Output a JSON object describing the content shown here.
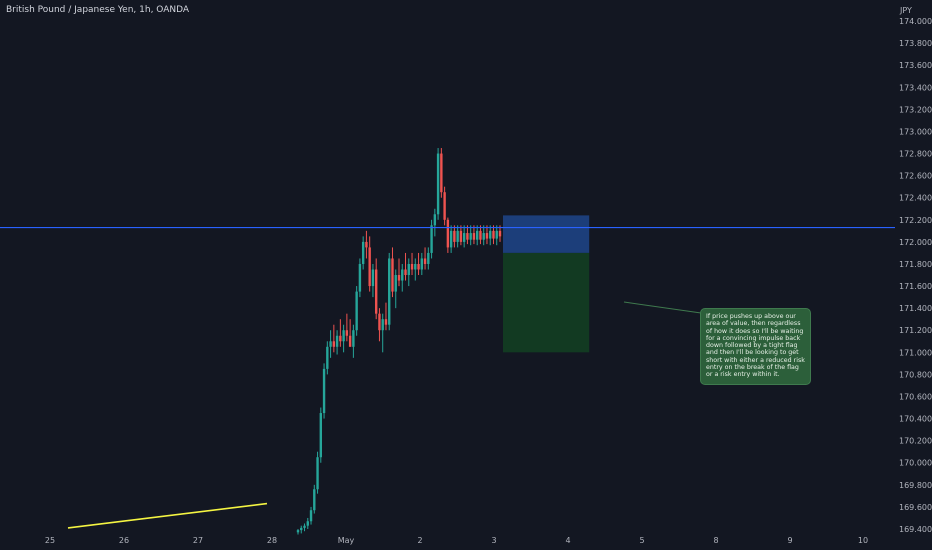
{
  "chart_data": {
    "type": "candlestick",
    "title": "British Pound / Japanese Yen, 1h, OANDA",
    "y_unit": "JPY",
    "ylim": [
      169.4,
      174.1
    ],
    "x_ticks": [
      "25",
      "26",
      "27",
      "28",
      "May",
      "2",
      "3",
      "4",
      "5",
      "8",
      "9",
      "10"
    ],
    "y_ticks": [
      "174.000",
      "173.800",
      "173.600",
      "173.400",
      "173.200",
      "173.000",
      "172.800",
      "172.600",
      "172.400",
      "172.200",
      "172.000",
      "171.800",
      "171.600",
      "171.400",
      "171.200",
      "171.000",
      "170.800",
      "170.600",
      "170.400",
      "170.200",
      "170.000",
      "169.800",
      "169.600",
      "169.400"
    ],
    "horizontal_line": {
      "value": 172.13,
      "color": "#2962ff"
    },
    "trendline": {
      "from": [
        "25",
        169.41
      ],
      "to": [
        "28",
        169.63
      ],
      "color": "#f5f542"
    },
    "position_box": {
      "side": "short",
      "entry": 171.9,
      "stop": 172.24,
      "target": 171.0,
      "from": "3",
      "to": "4.3",
      "risk_color": "#1c3e7a",
      "reward_color": "#123a22"
    },
    "annotation": "If price pushes up above our area of value, then regardless of how it does so I'll be waiting for a convincing impulse back down followed by a tight flag and then I'll be looking to get short with either a reduced risk entry on the break of the flag or a risk entry within it.",
    "colors": {
      "up": "#26a69a",
      "down": "#ef5350",
      "background": "#131722",
      "axis_text": "#b2b5be"
    },
    "candles": [
      {
        "x": "28",
        "o": 169.37,
        "h": 169.4,
        "l": 169.35,
        "c": 169.39
      },
      {
        "x": "28",
        "o": 169.39,
        "h": 169.43,
        "l": 169.36,
        "c": 169.41
      },
      {
        "x": "28",
        "o": 169.41,
        "h": 169.45,
        "l": 169.38,
        "c": 169.43
      },
      {
        "x": "28",
        "o": 169.43,
        "h": 169.5,
        "l": 169.4,
        "c": 169.47
      },
      {
        "x": "28",
        "o": 169.47,
        "h": 169.6,
        "l": 169.44,
        "c": 169.57
      },
      {
        "x": "28",
        "o": 169.57,
        "h": 169.8,
        "l": 169.54,
        "c": 169.76
      },
      {
        "x": "28",
        "o": 169.76,
        "h": 170.1,
        "l": 169.72,
        "c": 170.05
      },
      {
        "x": "28",
        "o": 170.05,
        "h": 170.5,
        "l": 170.0,
        "c": 170.45
      },
      {
        "x": "28",
        "o": 170.45,
        "h": 170.9,
        "l": 170.4,
        "c": 170.85
      },
      {
        "x": "28",
        "o": 170.85,
        "h": 171.1,
        "l": 170.8,
        "c": 171.05
      },
      {
        "x": "28",
        "o": 171.05,
        "h": 171.2,
        "l": 170.95,
        "c": 171.1
      },
      {
        "x": "28",
        "o": 171.1,
        "h": 171.25,
        "l": 171.0,
        "c": 171.05
      },
      {
        "x": "28",
        "o": 171.05,
        "h": 171.2,
        "l": 170.98,
        "c": 171.15
      },
      {
        "x": "28",
        "o": 171.15,
        "h": 171.3,
        "l": 171.05,
        "c": 171.1
      },
      {
        "x": "28",
        "o": 171.1,
        "h": 171.25,
        "l": 171.0,
        "c": 171.2
      },
      {
        "x": "28",
        "o": 171.2,
        "h": 171.35,
        "l": 171.1,
        "c": 171.15
      },
      {
        "x": "28",
        "o": 171.15,
        "h": 171.3,
        "l": 171.05,
        "c": 171.05
      },
      {
        "x": "28",
        "o": 171.05,
        "h": 171.25,
        "l": 170.95,
        "c": 171.2
      },
      {
        "x": "28",
        "o": 171.2,
        "h": 171.6,
        "l": 171.15,
        "c": 171.55
      },
      {
        "x": "28",
        "o": 171.55,
        "h": 171.85,
        "l": 171.5,
        "c": 171.8
      },
      {
        "x": "28",
        "o": 171.8,
        "h": 172.05,
        "l": 171.75,
        "c": 172.0
      },
      {
        "x": "28",
        "o": 172.0,
        "h": 172.1,
        "l": 171.85,
        "c": 171.95
      },
      {
        "x": "28",
        "o": 171.95,
        "h": 172.05,
        "l": 171.55,
        "c": 171.6
      },
      {
        "x": "28",
        "o": 171.6,
        "h": 171.8,
        "l": 171.5,
        "c": 171.75
      },
      {
        "x": "28",
        "o": 171.75,
        "h": 171.85,
        "l": 171.3,
        "c": 171.35
      },
      {
        "x": "28",
        "o": 171.35,
        "h": 171.4,
        "l": 171.1,
        "c": 171.2
      },
      {
        "x": "28",
        "o": 171.2,
        "h": 171.35,
        "l": 171.0,
        "c": 171.3
      },
      {
        "x": "28",
        "o": 171.3,
        "h": 171.45,
        "l": 171.2,
        "c": 171.25
      },
      {
        "x": "28",
        "o": 171.25,
        "h": 171.9,
        "l": 171.2,
        "c": 171.85
      },
      {
        "x": "28",
        "o": 171.85,
        "h": 171.95,
        "l": 171.5,
        "c": 171.55
      },
      {
        "x": "28",
        "o": 171.55,
        "h": 171.75,
        "l": 171.4,
        "c": 171.7
      },
      {
        "x": "28",
        "o": 171.7,
        "h": 171.85,
        "l": 171.6,
        "c": 171.65
      },
      {
        "x": "28",
        "o": 171.65,
        "h": 171.8,
        "l": 171.55,
        "c": 171.75
      },
      {
        "x": "28",
        "o": 171.75,
        "h": 171.9,
        "l": 171.65,
        "c": 171.7
      },
      {
        "x": "28",
        "o": 171.7,
        "h": 171.85,
        "l": 171.6,
        "c": 171.8
      },
      {
        "x": "28",
        "o": 171.8,
        "h": 171.9,
        "l": 171.7,
        "c": 171.75
      },
      {
        "x": "28",
        "o": 171.75,
        "h": 171.85,
        "l": 171.65,
        "c": 171.8
      },
      {
        "x": "28",
        "o": 171.8,
        "h": 171.9,
        "l": 171.7,
        "c": 171.75
      },
      {
        "x": "28",
        "o": 171.75,
        "h": 171.9,
        "l": 171.7,
        "c": 171.85
      },
      {
        "x": "28",
        "o": 171.85,
        "h": 171.95,
        "l": 171.75,
        "c": 171.8
      },
      {
        "x": "28",
        "o": 171.8,
        "h": 171.95,
        "l": 171.75,
        "c": 171.9
      },
      {
        "x": "28",
        "o": 171.9,
        "h": 172.2,
        "l": 171.85,
        "c": 172.15
      },
      {
        "x": "2",
        "o": 172.15,
        "h": 172.3,
        "l": 172.05,
        "c": 172.25
      },
      {
        "x": "2",
        "o": 172.25,
        "h": 172.85,
        "l": 172.2,
        "c": 172.8
      },
      {
        "x": "2",
        "o": 172.8,
        "h": 172.85,
        "l": 172.4,
        "c": 172.45
      },
      {
        "x": "2",
        "o": 172.45,
        "h": 172.5,
        "l": 172.15,
        "c": 172.2
      },
      {
        "x": "2",
        "o": 172.2,
        "h": 172.22,
        "l": 171.9,
        "c": 171.95
      },
      {
        "x": "2",
        "o": 171.95,
        "h": 172.15,
        "l": 171.9,
        "c": 172.1
      },
      {
        "x": "2",
        "o": 172.1,
        "h": 172.15,
        "l": 171.95,
        "c": 172.0
      },
      {
        "x": "2",
        "o": 172.0,
        "h": 172.15,
        "l": 171.95,
        "c": 172.1
      },
      {
        "x": "2",
        "o": 172.1,
        "h": 172.15,
        "l": 171.97,
        "c": 172.0
      },
      {
        "x": "2",
        "o": 172.0,
        "h": 172.15,
        "l": 171.95,
        "c": 172.08
      },
      {
        "x": "2",
        "o": 172.08,
        "h": 172.15,
        "l": 171.98,
        "c": 172.02
      },
      {
        "x": "2",
        "o": 172.02,
        "h": 172.15,
        "l": 171.97,
        "c": 172.08
      },
      {
        "x": "2",
        "o": 172.08,
        "h": 172.15,
        "l": 171.98,
        "c": 172.02
      },
      {
        "x": "2",
        "o": 172.02,
        "h": 172.15,
        "l": 171.97,
        "c": 172.1
      },
      {
        "x": "2",
        "o": 172.1,
        "h": 172.15,
        "l": 171.98,
        "c": 172.02
      },
      {
        "x": "3",
        "o": 172.02,
        "h": 172.15,
        "l": 171.97,
        "c": 172.08
      },
      {
        "x": "3",
        "o": 172.08,
        "h": 172.15,
        "l": 171.98,
        "c": 172.03
      },
      {
        "x": "3",
        "o": 172.03,
        "h": 172.15,
        "l": 171.97,
        "c": 172.1
      },
      {
        "x": "3",
        "o": 172.1,
        "h": 172.15,
        "l": 171.98,
        "c": 172.03
      },
      {
        "x": "3",
        "o": 172.03,
        "h": 172.15,
        "l": 171.97,
        "c": 172.1
      },
      {
        "x": "3",
        "o": 172.1,
        "h": 172.15,
        "l": 172.0,
        "c": 172.05
      }
    ]
  }
}
